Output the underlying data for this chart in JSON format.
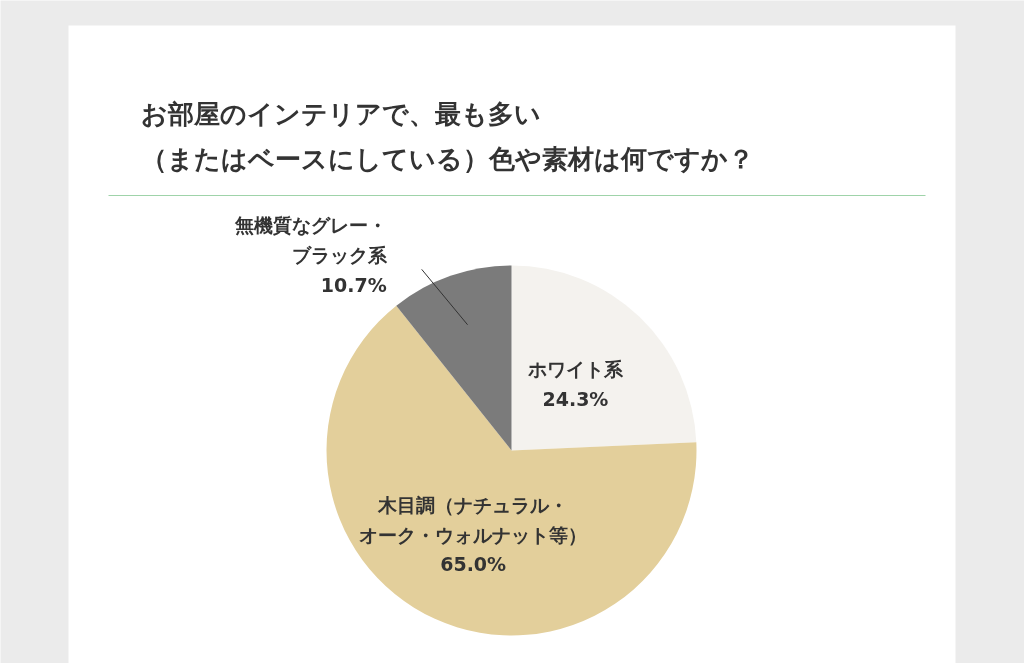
{
  "chart_data": {
    "type": "pie",
    "title": "お部屋のインテリアで、最も多い（またはベースにしている）色や素材は何ですか？",
    "categories": [
      "ホワイト系",
      "木目調（ナチュラル・オーク・ウォルナット等）",
      "無機質なグレー・ブラック系"
    ],
    "values": [
      24.3,
      65.0,
      10.7
    ],
    "colors": [
      "#f4f2ee",
      "#e3cf9b",
      "#7b7b7b"
    ],
    "value_labels": [
      "24.3%",
      "65.0%",
      "10.7%"
    ]
  }
}
